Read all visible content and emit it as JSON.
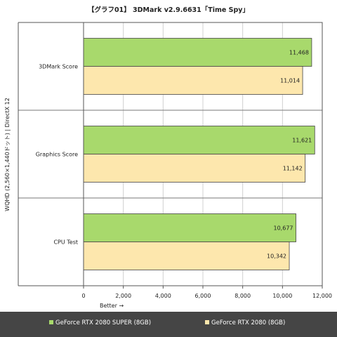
{
  "chart_data": {
    "type": "bar",
    "orientation": "horizontal",
    "title": "【グラフ01】 3DMark v2.9.6631「Time Spy」",
    "ylabel": "WQHD (2,560×1,440ドット) | DirectX 12",
    "xlabel": "Better →",
    "categories": [
      "3DMark Score",
      "Graphics Score",
      "CPU Test"
    ],
    "series": [
      {
        "name": "GeForce RTX 2080 SUPER (8GB)",
        "values": [
          11468,
          11621,
          10677
        ],
        "labels": [
          "11,468",
          "11,621",
          "10,677"
        ],
        "color": "#a8d96c"
      },
      {
        "name": "GeForce RTX 2080 (8GB)",
        "values": [
          11014,
          11142,
          10342
        ],
        "labels": [
          "11,014",
          "11,142",
          "10,342"
        ],
        "color": "#fde7ad"
      }
    ],
    "xlim": [
      0,
      12000
    ],
    "xticks": [
      0,
      2000,
      4000,
      6000,
      8000,
      10000,
      12000
    ],
    "xtick_labels": [
      "0",
      "2,000",
      "4,000",
      "6,000",
      "8,000",
      "10,000",
      "12,000"
    ],
    "grid": true,
    "legend": "bottom"
  }
}
